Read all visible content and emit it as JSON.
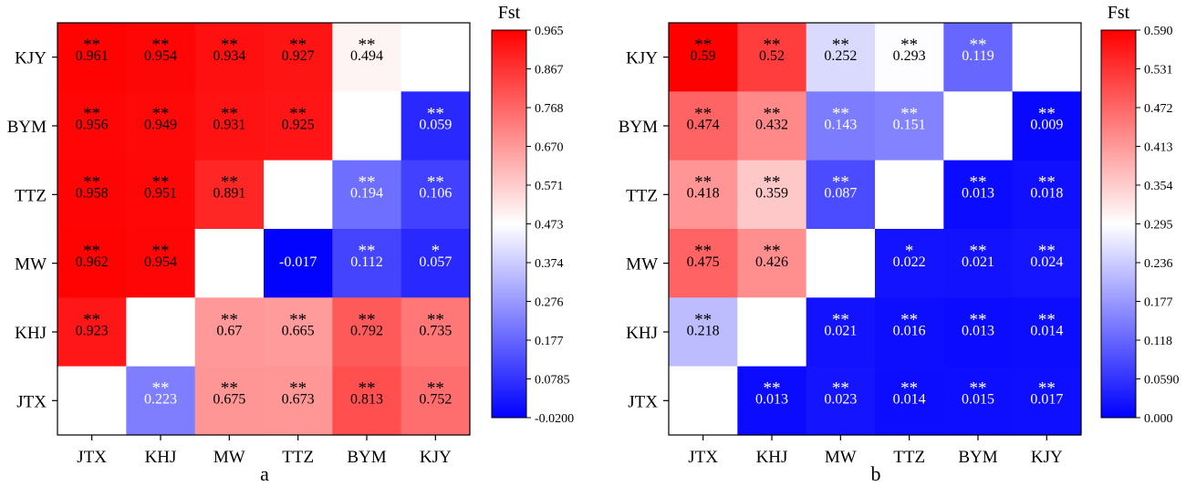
{
  "chart_data": [
    {
      "type": "heatmap",
      "panel_label": "a",
      "colorbar_title": "Fst",
      "colorbar_ticks": [
        "0.965",
        "0.867",
        "0.768",
        "0.670",
        "0.571",
        "0.473",
        "0.374",
        "0.276",
        "0.177",
        "0.0785",
        "-0.0200"
      ],
      "colorbar_range": [
        -0.02,
        0.965
      ],
      "colors": {
        "low": "#0000ff",
        "mid": "#ffffff",
        "high": "#ff0000"
      },
      "x_categories": [
        "JTX",
        "KHJ",
        "MW",
        "TTZ",
        "BYM",
        "KJY"
      ],
      "y_categories": [
        "KJY",
        "BYM",
        "TTZ",
        "MW",
        "KHJ",
        "JTX"
      ],
      "rows": [
        {
          "label": "KJY",
          "cells": [
            {
              "value": 0.961,
              "text": "0.961",
              "sig": "**"
            },
            {
              "value": 0.954,
              "text": "0.954",
              "sig": "**"
            },
            {
              "value": 0.934,
              "text": "0.934",
              "sig": "**"
            },
            {
              "value": 0.927,
              "text": "0.927",
              "sig": "**"
            },
            {
              "value": 0.494,
              "text": "0.494",
              "sig": "**"
            },
            null
          ]
        },
        {
          "label": "BYM",
          "cells": [
            {
              "value": 0.956,
              "text": "0.956",
              "sig": "**"
            },
            {
              "value": 0.949,
              "text": "0.949",
              "sig": "**"
            },
            {
              "value": 0.931,
              "text": "0.931",
              "sig": "**"
            },
            {
              "value": 0.925,
              "text": "0.925",
              "sig": "**"
            },
            null,
            {
              "value": 0.059,
              "text": "0.059",
              "sig": "**"
            }
          ]
        },
        {
          "label": "TTZ",
          "cells": [
            {
              "value": 0.958,
              "text": "0.958",
              "sig": "**"
            },
            {
              "value": 0.951,
              "text": "0.951",
              "sig": "**"
            },
            {
              "value": 0.891,
              "text": "0.891",
              "sig": "**"
            },
            null,
            {
              "value": 0.194,
              "text": "0.194",
              "sig": "**"
            },
            {
              "value": 0.106,
              "text": "0.106",
              "sig": "**"
            }
          ]
        },
        {
          "label": "MW",
          "cells": [
            {
              "value": 0.962,
              "text": "0.962",
              "sig": "**"
            },
            {
              "value": 0.954,
              "text": "0.954",
              "sig": "**"
            },
            null,
            {
              "value": -0.017,
              "text": "-0.017",
              "sig": ""
            },
            {
              "value": 0.112,
              "text": "0.112",
              "sig": "**"
            },
            {
              "value": 0.057,
              "text": "0.057",
              "sig": "*"
            }
          ]
        },
        {
          "label": "KHJ",
          "cells": [
            {
              "value": 0.923,
              "text": "0.923",
              "sig": "**"
            },
            null,
            {
              "value": 0.67,
              "text": "0.67",
              "sig": "**"
            },
            {
              "value": 0.665,
              "text": "0.665",
              "sig": "**"
            },
            {
              "value": 0.792,
              "text": "0.792",
              "sig": "**"
            },
            {
              "value": 0.735,
              "text": "0.735",
              "sig": "**"
            }
          ]
        },
        {
          "label": "JTX",
          "cells": [
            null,
            {
              "value": 0.223,
              "text": "0.223",
              "sig": "**"
            },
            {
              "value": 0.675,
              "text": "0.675",
              "sig": "**"
            },
            {
              "value": 0.673,
              "text": "0.673",
              "sig": "**"
            },
            {
              "value": 0.813,
              "text": "0.813",
              "sig": "**"
            },
            {
              "value": 0.752,
              "text": "0.752",
              "sig": "**"
            }
          ]
        }
      ]
    },
    {
      "type": "heatmap",
      "panel_label": "b",
      "colorbar_title": "Fst",
      "colorbar_ticks": [
        "0.590",
        "0.531",
        "0.472",
        "0.413",
        "0.354",
        "0.295",
        "0.236",
        "0.177",
        "0.118",
        "0.0590",
        "0.000"
      ],
      "colorbar_range": [
        0.0,
        0.59
      ],
      "colors": {
        "low": "#0000ff",
        "mid": "#ffffff",
        "high": "#ff0000"
      },
      "x_categories": [
        "JTX",
        "KHJ",
        "MW",
        "TTZ",
        "BYM",
        "KJY"
      ],
      "y_categories": [
        "KJY",
        "BYM",
        "TTZ",
        "MW",
        "KHJ",
        "JTX"
      ],
      "rows": [
        {
          "label": "KJY",
          "cells": [
            {
              "value": 0.59,
              "text": "0.59",
              "sig": "**"
            },
            {
              "value": 0.52,
              "text": "0.52",
              "sig": "**"
            },
            {
              "value": 0.252,
              "text": "0.252",
              "sig": "**"
            },
            {
              "value": 0.293,
              "text": "0.293",
              "sig": "**"
            },
            {
              "value": 0.119,
              "text": "0.119",
              "sig": "**"
            },
            null
          ]
        },
        {
          "label": "BYM",
          "cells": [
            {
              "value": 0.474,
              "text": "0.474",
              "sig": "**"
            },
            {
              "value": 0.432,
              "text": "0.432",
              "sig": "**"
            },
            {
              "value": 0.143,
              "text": "0.143",
              "sig": "**"
            },
            {
              "value": 0.151,
              "text": "0.151",
              "sig": "**"
            },
            null,
            {
              "value": 0.009,
              "text": "0.009",
              "sig": "**"
            }
          ]
        },
        {
          "label": "TTZ",
          "cells": [
            {
              "value": 0.418,
              "text": "0.418",
              "sig": "**"
            },
            {
              "value": 0.359,
              "text": "0.359",
              "sig": "**"
            },
            {
              "value": 0.087,
              "text": "0.087",
              "sig": "**"
            },
            null,
            {
              "value": 0.013,
              "text": "0.013",
              "sig": "**"
            },
            {
              "value": 0.018,
              "text": "0.018",
              "sig": "**"
            }
          ]
        },
        {
          "label": "MW",
          "cells": [
            {
              "value": 0.475,
              "text": "0.475",
              "sig": "**"
            },
            {
              "value": 0.426,
              "text": "0.426",
              "sig": "**"
            },
            null,
            {
              "value": 0.022,
              "text": "0.022",
              "sig": "*"
            },
            {
              "value": 0.021,
              "text": "0.021",
              "sig": "**"
            },
            {
              "value": 0.024,
              "text": "0.024",
              "sig": "**"
            }
          ]
        },
        {
          "label": "KHJ",
          "cells": [
            {
              "value": 0.218,
              "text": "0.218",
              "sig": "**"
            },
            null,
            {
              "value": 0.021,
              "text": "0.021",
              "sig": "**"
            },
            {
              "value": 0.016,
              "text": "0.016",
              "sig": "**"
            },
            {
              "value": 0.013,
              "text": "0.013",
              "sig": "**"
            },
            {
              "value": 0.014,
              "text": "0.014",
              "sig": "**"
            }
          ]
        },
        {
          "label": "JTX",
          "cells": [
            null,
            {
              "value": 0.013,
              "text": "0.013",
              "sig": "**"
            },
            {
              "value": 0.023,
              "text": "0.023",
              "sig": "**"
            },
            {
              "value": 0.014,
              "text": "0.014",
              "sig": "**"
            },
            {
              "value": 0.015,
              "text": "0.015",
              "sig": "**"
            },
            {
              "value": 0.017,
              "text": "0.017",
              "sig": "**"
            }
          ]
        }
      ]
    }
  ]
}
